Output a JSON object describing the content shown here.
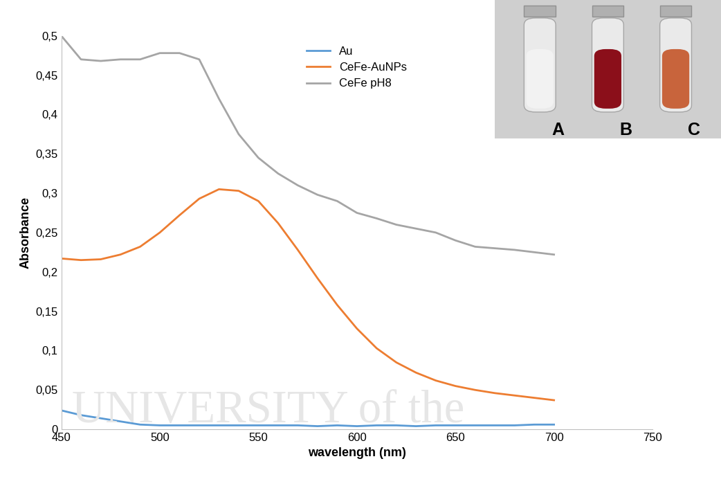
{
  "chart_data": {
    "type": "line",
    "x_label": "wavelength (nm)",
    "y_label": "Absorbance",
    "x": [
      450,
      460,
      470,
      480,
      490,
      500,
      510,
      520,
      530,
      540,
      550,
      560,
      570,
      580,
      590,
      600,
      610,
      620,
      630,
      640,
      650,
      660,
      670,
      680,
      690,
      700
    ],
    "series": [
      {
        "name": "Au",
        "color": "#5b9bd5",
        "values": [
          0.024,
          0.018,
          0.014,
          0.01,
          0.006,
          0.005,
          0.005,
          0.005,
          0.005,
          0.005,
          0.005,
          0.005,
          0.005,
          0.004,
          0.005,
          0.004,
          0.005,
          0.005,
          0.004,
          0.005,
          0.005,
          0.005,
          0.005,
          0.005,
          0.006,
          0.006
        ]
      },
      {
        "name": "CeFe-AuNPs",
        "color": "#ed7d31",
        "values": [
          0.217,
          0.215,
          0.216,
          0.222,
          0.232,
          0.25,
          0.272,
          0.293,
          0.305,
          0.303,
          0.29,
          0.262,
          0.228,
          0.192,
          0.158,
          0.128,
          0.103,
          0.085,
          0.072,
          0.062,
          0.055,
          0.05,
          0.046,
          0.043,
          0.04,
          0.037
        ]
      },
      {
        "name": "CeFe pH8",
        "color": "#a5a5a5",
        "values": [
          0.5,
          0.47,
          0.468,
          0.47,
          0.47,
          0.478,
          0.478,
          0.47,
          0.42,
          0.375,
          0.345,
          0.325,
          0.31,
          0.298,
          0.29,
          0.275,
          0.268,
          0.26,
          0.255,
          0.25,
          0.24,
          0.232,
          0.23,
          0.228,
          0.225,
          0.222
        ]
      }
    ],
    "xlim": [
      450,
      750
    ],
    "xticks": [
      450,
      500,
      550,
      600,
      650,
      700,
      750
    ],
    "ylim": [
      0,
      0.5
    ],
    "yticks": [
      0,
      {
        "value": 0.05,
        "label": "0,05"
      },
      {
        "value": 0.1,
        "label": "0,1"
      },
      {
        "value": 0.15,
        "label": "0,15"
      },
      {
        "value": 0.2,
        "label": "0,2"
      },
      {
        "value": 0.25,
        "label": "0,25"
      },
      {
        "value": 0.3,
        "label": "0,3"
      },
      {
        "value": 0.35,
        "label": "0,35"
      },
      {
        "value": 0.4,
        "label": "0,4"
      },
      {
        "value": 0.45,
        "label": "0,45"
      },
      {
        "value": 0.5,
        "label": "0,5"
      }
    ],
    "grid": false,
    "legend": "upper center",
    "annotations": [
      "A",
      "B",
      "C"
    ],
    "watermark": "UNIVERSITY of the"
  }
}
